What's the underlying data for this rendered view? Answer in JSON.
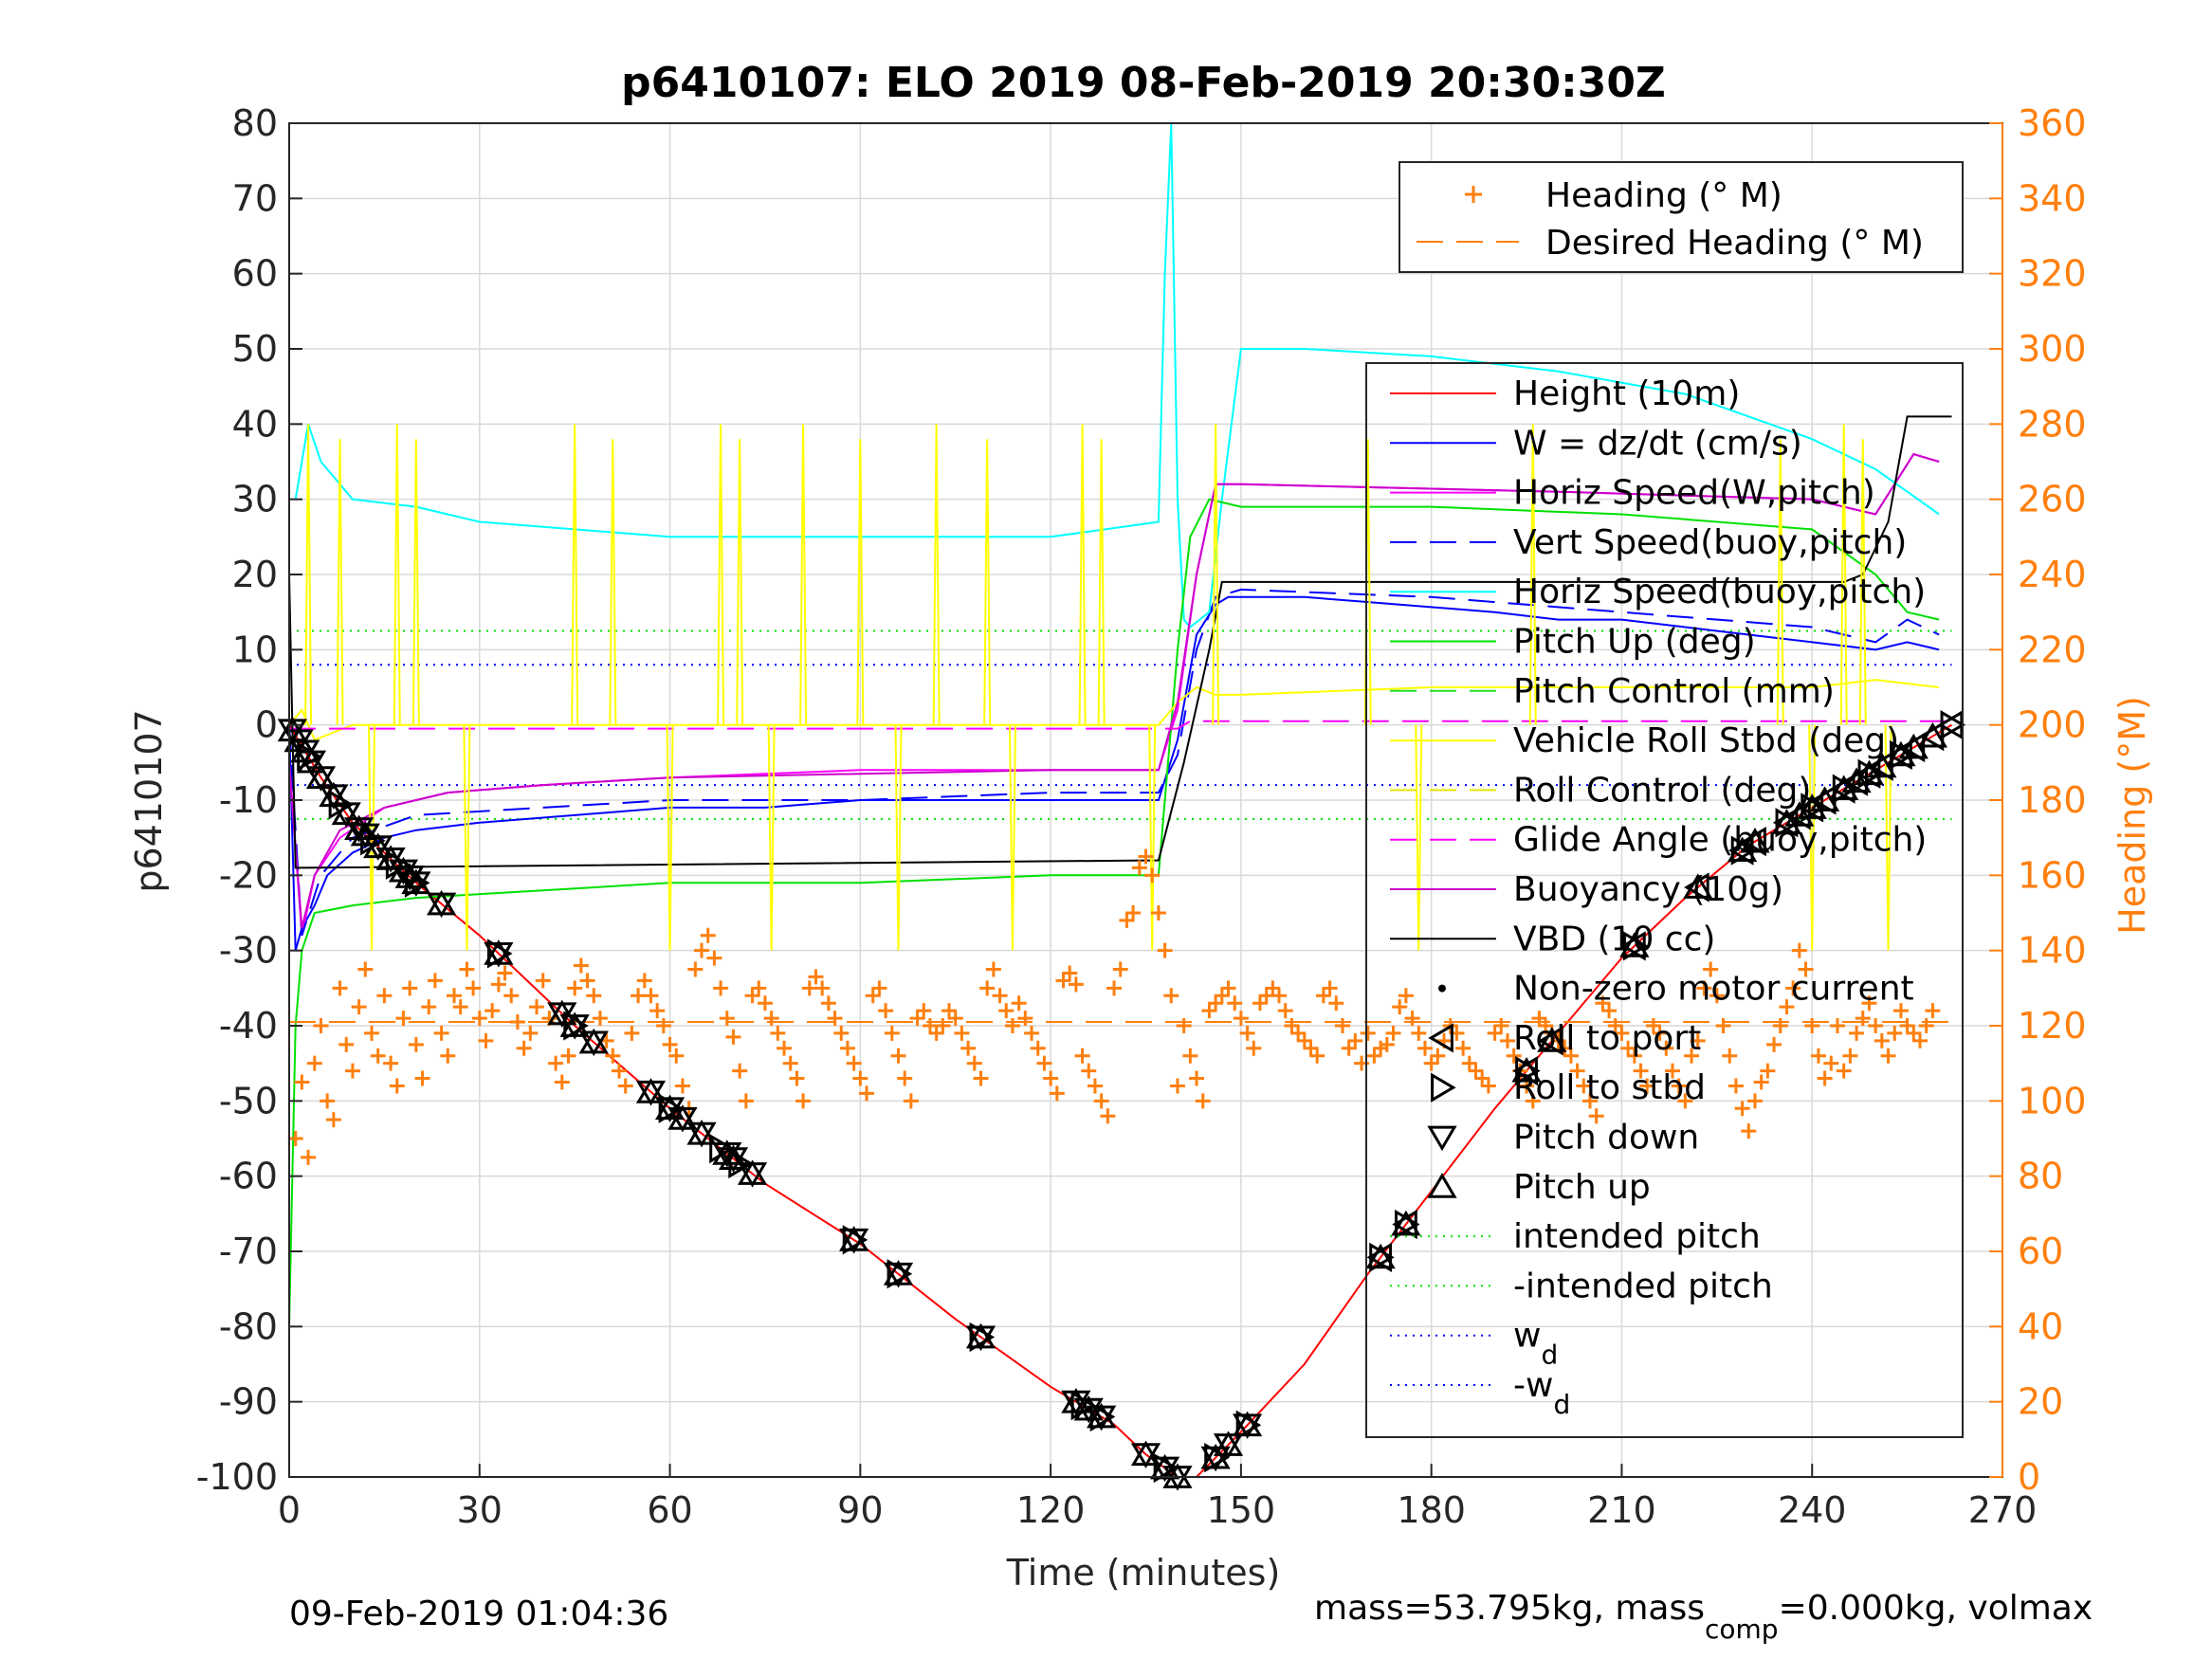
{
  "figure": {
    "title": "p6410107: ELO 2019 08-Feb-2019 20:30:30Z",
    "footer_left": "09-Feb-2019 01:04:36",
    "footer_right": {
      "part1": "mass=53.795kg, mass",
      "sub1": "comp",
      "part2": "=0.000kg, volmax"
    }
  },
  "colors": {
    "height": "#ff0000",
    "w": "#0000ff",
    "horiz_w": "#ff00ff",
    "vert_buoy": "#0000ff",
    "horiz_buoy": "#00c0c0",
    "pitch_up": "#00e000",
    "pitch_control": "#22dd22",
    "roll": "#ffff00",
    "roll_control": "#e6e600",
    "glide": "#ff00ff",
    "buoyancy": "#cc00cc",
    "vbd": "#000000",
    "heading": "#ff7f0e",
    "cyan": "#00ffff",
    "grid": "#d9d9d9"
  },
  "chart_data": {
    "type": "line",
    "xlabel": "Time (minutes)",
    "ylabel": "p6410107",
    "y2label": "Heading (°M)",
    "xlim": [
      0,
      270
    ],
    "ylim": [
      -100,
      80
    ],
    "y2lim": [
      0,
      360
    ],
    "xticks": [
      "0",
      "30",
      "60",
      "90",
      "120",
      "150",
      "180",
      "210",
      "240",
      "270"
    ],
    "yticks": [
      "80",
      "70",
      "60",
      "50",
      "40",
      "30",
      "20",
      "10",
      "0",
      "-10",
      "-20",
      "-30",
      "-40",
      "-50",
      "-60",
      "-70",
      "-80",
      "-90",
      "-100"
    ],
    "y2ticks": [
      "360",
      "340",
      "320",
      "300",
      "280",
      "260",
      "240",
      "220",
      "200",
      "180",
      "160",
      "140",
      "120",
      "100",
      "80",
      "60",
      "40",
      "20",
      "0"
    ],
    "grid": true,
    "legend_heading": [
      {
        "label": "Heading (° M)"
      },
      {
        "label": "Desired Heading (° M)"
      }
    ],
    "legend_main": [
      {
        "label": "Height (10m)"
      },
      {
        "label": "W = dz/dt (cm/s)"
      },
      {
        "label": "Horiz Speed(W,pitch)"
      },
      {
        "label": "Vert Speed(buoy,pitch)"
      },
      {
        "label": "Horiz Speed(buoy,pitch)"
      },
      {
        "label": "Pitch Up (deg)"
      },
      {
        "label": "Pitch Control (mm)"
      },
      {
        "label": "Vehicle Roll Stbd (deg)"
      },
      {
        "label": "Roll Control (deg)"
      },
      {
        "label": "Glide Angle (buoy,pitch)"
      },
      {
        "label": "Buoyancy (10g)"
      },
      {
        "label": "VBD (10 cc)"
      },
      {
        "label": "Non-zero motor current"
      },
      {
        "label": "Roll to port"
      },
      {
        "label": "Roll to stbd"
      },
      {
        "label": "Pitch down"
      },
      {
        "label": "Pitch up"
      },
      {
        "label": "intended pitch"
      },
      {
        "label": "-intended pitch"
      },
      {
        "label": "w",
        "sub": "d"
      },
      {
        "label": "-w",
        "sub": "d"
      }
    ],
    "series": [
      {
        "name": "Height (10m)",
        "x": [
          0,
          5,
          10,
          20,
          30,
          45,
          60,
          75,
          90,
          105,
          120,
          130,
          135,
          140,
          143,
          150,
          160,
          170,
          180,
          190,
          200,
          210,
          220,
          230,
          240,
          250,
          262
        ],
        "y": [
          0,
          -7,
          -13,
          -21,
          -28,
          -40,
          -51,
          -61,
          -69,
          -79,
          -88,
          -93,
          -97,
          -100,
          -100,
          -94,
          -85,
          -73,
          -62,
          -51,
          -41,
          -31,
          -23,
          -16,
          -11,
          -6,
          0
        ]
      },
      {
        "name": "W = dz/dt (cm/s)",
        "x": [
          0,
          1,
          2,
          4,
          6,
          10,
          15,
          20,
          30,
          45,
          60,
          75,
          90,
          105,
          120,
          130,
          137,
          140,
          143,
          146,
          148,
          150,
          160,
          175,
          190,
          200,
          210,
          220,
          230,
          240,
          250,
          255,
          260
        ],
        "y": [
          0,
          -30,
          -27,
          -24,
          -20,
          -17,
          -15,
          -14,
          -13,
          -12,
          -11,
          -11,
          -10,
          -10,
          -10,
          -10,
          -10,
          -2,
          12,
          16,
          17,
          17,
          17,
          16,
          15,
          14,
          14,
          13,
          12,
          11,
          10,
          11,
          10
        ]
      },
      {
        "name": "Horiz Speed(W,pitch)",
        "x": [
          0,
          2,
          4,
          8,
          15,
          25,
          40,
          60,
          90,
          120,
          137,
          140,
          143,
          146,
          150,
          200,
          240,
          250,
          253,
          256,
          260
        ],
        "y": [
          -5,
          -28,
          -20,
          -15,
          -11,
          -9,
          -8,
          -7,
          -6,
          -6,
          -6,
          2,
          20,
          32,
          32,
          31,
          30,
          28,
          32,
          36,
          35
        ]
      },
      {
        "name": "Vert Speed(buoy,pitch)",
        "x": [
          0,
          2,
          5,
          10,
          20,
          40,
          60,
          90,
          120,
          137,
          140,
          143,
          146,
          150,
          180,
          210,
          240,
          250,
          255,
          260
        ],
        "y": [
          0,
          -28,
          -20,
          -15,
          -12,
          -11,
          -10,
          -10,
          -9,
          -9,
          -4,
          10,
          17,
          18,
          17,
          15,
          13,
          11,
          14,
          12
        ]
      },
      {
        "name": "Horiz Speed(buoy,pitch)",
        "x": [
          1,
          3,
          5,
          10,
          20,
          30,
          45,
          60,
          90,
          120,
          137,
          138,
          139,
          140,
          141,
          142,
          145,
          147,
          150,
          160,
          180,
          200,
          220,
          240,
          250,
          260
        ],
        "y": [
          30,
          40,
          35,
          30,
          29,
          27,
          26,
          25,
          25,
          25,
          27,
          60,
          85,
          30,
          14,
          13,
          15,
          30,
          50,
          50,
          49,
          47,
          44,
          38,
          34,
          28
        ]
      },
      {
        "name": "Pitch Up (deg)",
        "x": [
          0,
          1,
          2,
          4,
          10,
          20,
          40,
          60,
          90,
          120,
          137,
          140,
          142,
          145,
          150,
          180,
          210,
          240,
          250,
          255,
          260
        ],
        "y": [
          -80,
          -40,
          -30,
          -25,
          -24,
          -23,
          -22,
          -21,
          -21,
          -20,
          -20,
          10,
          25,
          30,
          29,
          29,
          28,
          26,
          20,
          15,
          14
        ]
      },
      {
        "name": "Vehicle Roll Stbd (deg)",
        "x": [
          0,
          2,
          4,
          10,
          20,
          40,
          60,
          80,
          100,
          120,
          137,
          140,
          143,
          146,
          150,
          180,
          210,
          240,
          250,
          260
        ],
        "y": [
          0,
          2,
          -2,
          0,
          0,
          0,
          0,
          0,
          0,
          0,
          0,
          3,
          5,
          4,
          4,
          5,
          5,
          5,
          6,
          5
        ]
      },
      {
        "name": "Glide Angle (buoy,pitch)",
        "x": [
          0,
          140,
          142,
          150,
          262
        ],
        "y": [
          -0.5,
          -0.5,
          0.5,
          0.5,
          0.5
        ]
      },
      {
        "name": "Buoyancy (10g)",
        "x": [
          0,
          2,
          4,
          8,
          15,
          25,
          40,
          60,
          90,
          120,
          137,
          140,
          143,
          146,
          150,
          200,
          240,
          250,
          253,
          256,
          260
        ],
        "y": [
          -5,
          -27,
          -20,
          -14,
          -11,
          -9,
          -8,
          -7,
          -6.5,
          -6,
          -6,
          3,
          20,
          32,
          32,
          31,
          30,
          28,
          32,
          36,
          35
        ]
      },
      {
        "name": "VBD (10 cc)",
        "x": [
          0,
          0.5,
          1,
          2,
          137,
          141,
          145,
          147,
          150,
          245,
          248,
          252,
          255,
          262
        ],
        "y": [
          20,
          0,
          -19,
          -19,
          -18,
          -5,
          10,
          19,
          19,
          19,
          20,
          27,
          41,
          41
        ]
      },
      {
        "name": "Desired Heading (° M)",
        "x": [
          0,
          262
        ],
        "y2": [
          121,
          121
        ]
      }
    ],
    "reference_lines": [
      {
        "name": "intended pitch",
        "y": 12.5
      },
      {
        "name": "-intended pitch",
        "y": -12.5
      },
      {
        "name": "w_d",
        "y": 8
      },
      {
        "name": "-w_d",
        "y": -8
      }
    ],
    "roll_spikes_x": [
      3,
      8,
      13,
      17,
      20,
      28,
      45,
      51,
      60,
      68,
      71,
      76,
      81,
      90,
      96,
      102,
      110,
      114,
      125,
      128,
      136,
      146,
      170,
      178,
      196,
      235,
      240,
      245,
      248,
      252
    ],
    "heading_points": {
      "x": [
        1,
        2,
        3,
        4,
        5,
        6,
        7,
        8,
        9,
        10,
        11,
        12,
        13,
        14,
        15,
        16,
        17,
        18,
        19,
        20,
        21,
        22,
        23,
        24,
        25,
        26,
        27,
        28,
        29,
        30,
        31,
        32,
        33,
        34,
        35,
        36,
        37,
        38,
        39,
        40,
        41,
        42,
        43,
        44,
        45,
        46,
        47,
        48,
        49,
        50,
        51,
        52,
        53,
        54,
        55,
        56,
        57,
        58,
        59,
        60,
        61,
        62,
        63,
        64,
        65,
        66,
        67,
        68,
        69,
        70,
        71,
        72,
        73,
        74,
        75,
        76,
        77,
        78,
        79,
        80,
        81,
        82,
        83,
        84,
        85,
        86,
        87,
        88,
        89,
        90,
        91,
        92,
        93,
        94,
        95,
        96,
        97,
        98,
        99,
        100,
        101,
        102,
        103,
        104,
        105,
        106,
        107,
        108,
        109,
        110,
        111,
        112,
        113,
        114,
        115,
        116,
        117,
        118,
        119,
        120,
        121,
        122,
        123,
        124,
        125,
        126,
        127,
        128,
        129,
        130,
        131,
        132,
        133,
        134,
        135,
        136,
        137,
        138,
        139,
        140,
        141,
        142,
        143,
        144,
        145,
        146,
        147,
        148,
        149,
        150,
        151,
        152,
        153,
        154,
        155,
        156,
        157,
        158,
        159,
        160,
        161,
        162,
        163,
        164,
        165,
        166,
        167,
        168,
        169,
        170,
        171,
        172,
        173,
        174,
        175,
        176,
        177,
        178,
        179,
        180,
        181,
        182,
        183,
        184,
        185,
        186,
        187,
        188,
        189,
        190,
        191,
        192,
        193,
        194,
        195,
        196,
        197,
        198,
        199,
        200,
        201,
        202,
        203,
        204,
        205,
        206,
        207,
        208,
        209,
        210,
        211,
        212,
        213,
        214,
        215,
        216,
        217,
        218,
        219,
        220,
        221,
        222,
        223,
        224,
        225,
        226,
        227,
        228,
        229,
        230,
        231,
        232,
        233,
        234,
        235,
        236,
        237,
        238,
        239,
        240,
        241,
        242,
        243,
        244,
        245,
        246,
        247,
        248,
        249,
        250,
        251,
        252,
        253,
        254,
        255,
        256,
        257,
        258,
        259,
        260,
        261
      ],
      "y2": [
        90,
        105,
        85,
        110,
        120,
        100,
        95,
        130,
        115,
        108,
        125,
        135,
        118,
        112,
        128,
        110,
        104,
        122,
        130,
        115,
        106,
        125,
        132,
        118,
        112,
        128,
        125,
        135,
        130,
        122,
        116,
        124,
        131,
        134,
        128,
        121,
        114,
        118,
        125,
        132,
        122,
        110,
        105,
        112,
        130,
        136,
        132,
        128,
        122,
        116,
        112,
        108,
        104,
        118,
        128,
        132,
        128,
        124,
        120,
        115,
        112,
        104,
        98,
        135,
        140,
        144,
        138,
        130,
        122,
        117,
        108,
        100,
        128,
        130,
        126,
        122,
        118,
        114,
        110,
        106,
        100,
        130,
        133,
        130,
        126,
        122,
        118,
        114,
        110,
        106,
        102,
        128,
        130,
        124,
        118,
        112,
        106,
        100,
        122,
        124,
        120,
        118,
        120,
        124,
        122,
        118,
        114,
        110,
        106,
        130,
        135,
        128,
        124,
        120,
        126,
        122,
        118,
        114,
        110,
        106,
        102,
        132,
        134,
        131,
        112,
        108,
        104,
        100,
        96,
        130,
        135,
        148,
        150,
        162,
        165,
        160,
        150,
        140,
        128,
        104,
        120,
        112,
        106,
        100,
        124,
        126,
        128,
        130,
        126,
        122,
        118,
        114,
        126,
        128,
        130,
        128,
        124,
        120,
        118,
        116,
        114,
        112,
        128,
        130,
        126,
        120,
        114,
        116,
        110,
        118,
        112,
        114,
        115,
        118,
        125,
        128,
        122,
        118,
        114,
        110,
        112,
        116,
        120,
        118,
        114,
        110,
        108,
        106,
        104,
        118,
        120,
        116,
        112,
        108,
        104,
        100,
        122,
        120,
        118,
        116,
        114,
        112,
        108,
        104,
        100,
        96,
        126,
        124,
        120,
        118,
        114,
        112,
        108,
        104,
        120,
        118,
        114,
        108,
        104,
        100,
        112,
        116,
        130,
        135,
        128,
        120,
        112,
        104,
        98,
        92,
        100,
        105,
        108,
        115,
        120,
        125,
        130,
        140,
        135,
        120,
        112,
        106,
        110,
        120,
        108,
        112,
        118,
        122,
        126,
        120,
        116,
        112,
        118,
        124,
        120,
        118,
        116,
        120,
        124
      ]
    },
    "marker_groups": [
      {
        "name": "Pitch down",
        "x": [
          0.5,
          1.5,
          2.5,
          3.5,
          5,
          7,
          9,
          11,
          12,
          14,
          16,
          18,
          19,
          20,
          24,
          33,
          43,
          45,
          48,
          57,
          60,
          62,
          65,
          69,
          70,
          73,
          89,
          96,
          109,
          124,
          126,
          128,
          135,
          138,
          140,
          146,
          148,
          151
        ]
      },
      {
        "name": "Pitch up",
        "x": [
          0.5,
          1.5,
          2.5,
          3.5,
          5,
          7,
          9,
          11,
          12,
          14,
          16,
          18,
          19,
          20,
          24,
          33,
          43,
          45,
          48,
          57,
          60,
          62,
          65,
          69,
          70,
          73,
          89,
          96,
          109,
          124,
          126,
          128,
          135,
          138,
          140,
          146,
          148,
          151,
          172,
          176,
          195,
          199,
          212,
          222,
          229,
          231,
          236,
          238,
          240,
          242,
          245,
          247,
          249,
          251,
          254,
          256,
          259
        ]
      },
      {
        "name": "Roll to port",
        "x": [
          172,
          176,
          195,
          199,
          212,
          222,
          229,
          231,
          236,
          238,
          240,
          242,
          245,
          247,
          249,
          251,
          254,
          256,
          259,
          262
        ]
      },
      {
        "name": "Roll to stbd",
        "x": [
          3,
          8,
          13,
          17,
          20,
          33,
          45,
          60,
          68,
          71,
          89,
          96,
          109,
          125,
          128,
          138,
          146,
          151,
          172,
          176,
          195,
          212,
          229,
          236,
          240,
          245,
          249,
          254,
          262
        ]
      }
    ]
  }
}
